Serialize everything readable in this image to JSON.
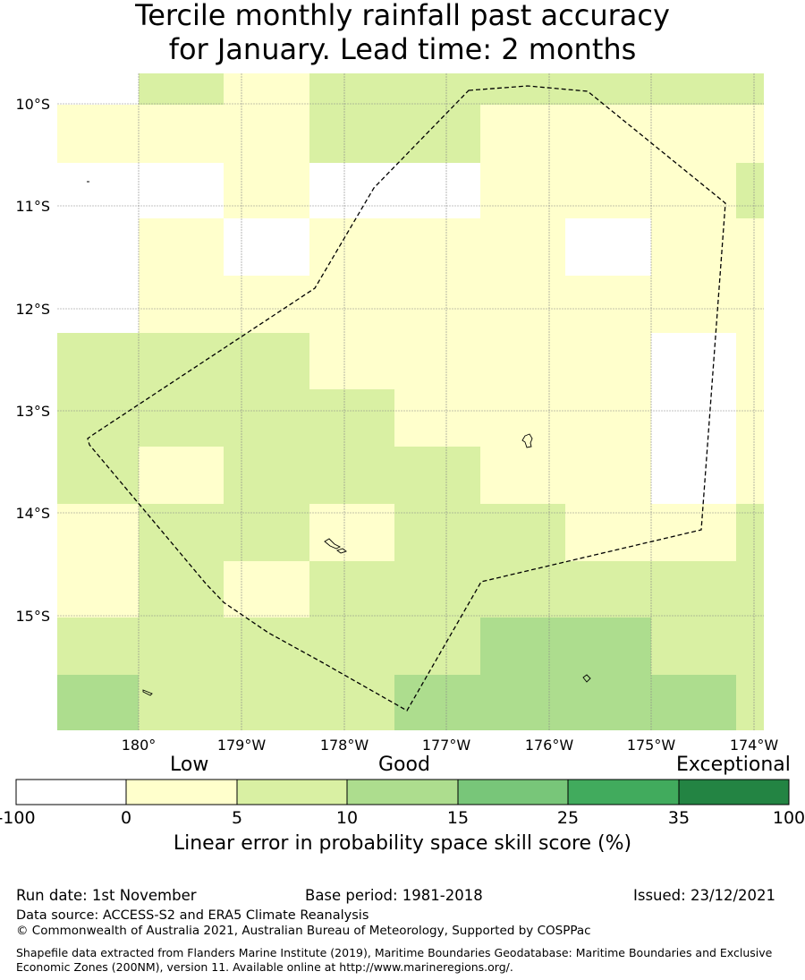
{
  "title": {
    "line1": "Tercile monthly rainfall past accuracy",
    "line2": "for January. Lead time: 2 months"
  },
  "map": {
    "lat_labels": [
      "10°S",
      "11°S",
      "12°S",
      "13°S",
      "14°S",
      "15°S"
    ],
    "lon_labels": [
      "180°",
      "179°W",
      "178°W",
      "177°W",
      "176°W",
      "175°W",
      "174°W"
    ],
    "colors": {
      "white": "#ffffff",
      "low": "#ffffcc",
      "good1": "#d9f0a3",
      "good2": "#addd8e",
      "good3": "#78c679",
      "good4": "#41ab5d",
      "exceptional": "#238443"
    },
    "skill_rows": [
      [
        "white",
        "good1",
        "low",
        "good1",
        "good1",
        "good1",
        "good1",
        "good1",
        "good1"
      ],
      [
        "low",
        "low",
        "low",
        "good1",
        "good1",
        "low",
        "low",
        "low",
        "low"
      ],
      [
        "white",
        "white",
        "low",
        "white",
        "white",
        "low",
        "low",
        "low",
        "good1"
      ],
      [
        "white",
        "low",
        "white",
        "low",
        "low",
        "low",
        "white",
        "low",
        "low"
      ],
      [
        "white",
        "low",
        "low",
        "low",
        "low",
        "low",
        "low",
        "low",
        "low"
      ],
      [
        "good1",
        "good1",
        "good1",
        "low",
        "low",
        "low",
        "low",
        "white",
        "low"
      ],
      [
        "good1",
        "good1",
        "good1",
        "good1",
        "low",
        "low",
        "low",
        "white",
        "low"
      ],
      [
        "good1",
        "low",
        "good1",
        "good1",
        "good1",
        "low",
        "low",
        "white",
        "low"
      ],
      [
        "low",
        "good1",
        "good1",
        "low",
        "good1",
        "good1",
        "low",
        "low",
        "good1"
      ],
      [
        "low",
        "good1",
        "low",
        "good1",
        "good1",
        "good1",
        "good1",
        "good1",
        "good1"
      ],
      [
        "good1",
        "good1",
        "good1",
        "good1",
        "good1",
        "good2",
        "good2",
        "good1",
        "good1"
      ],
      [
        "good2",
        "good1",
        "good1",
        "good1",
        "good2",
        "good2",
        "good2",
        "good2",
        "good1"
      ]
    ]
  },
  "colorbar": {
    "categories": [
      "Low",
      "Good",
      "Exceptional"
    ],
    "ticks": [
      "-100",
      "0",
      "5",
      "10",
      "15",
      "25",
      "35",
      "100"
    ],
    "colors": [
      "#ffffff",
      "#ffffcc",
      "#d9f0a3",
      "#addd8e",
      "#78c679",
      "#41ab5d",
      "#238443"
    ],
    "title": "Linear error in probability space skill score (%)"
  },
  "footer": {
    "run_date": "Run date: 1st November",
    "base_period": "Base period: 1981-2018",
    "issued": "Issued: 23/12/2021",
    "data_source": "Data source: ACCESS-S2 and ERA5 Climate Reanalysis",
    "copyright": "© Commonwealth of Australia 2021, Australian Bureau of Meteorology, Supported by COSPPac",
    "shapefile": "Shapefile data extracted from Flanders Marine Institute (2019), Maritime Boundaries Geodatabase: Maritime Boundaries and Exclusive Economic Zones (200NM), version 11. Available online at http://www.marineregions.org/."
  }
}
